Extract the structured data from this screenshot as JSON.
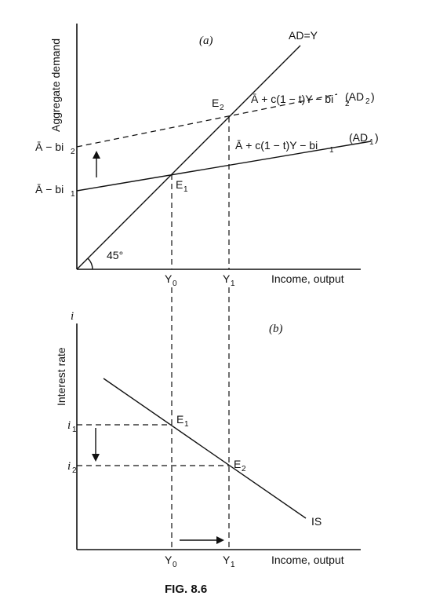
{
  "panel_a": {
    "tag": "(a)",
    "y_axis_label": "Aggregate demand",
    "x_axis_label": "Income, output",
    "ad_y_label": "AD=Y",
    "angle_label": "45°",
    "ad2_label": "(AD",
    "ad2_sub": "2",
    "ad1_label": "(AD",
    "ad1_sub": "1",
    "ad2_expr": "Ā + c(1 − t)Y − bi",
    "ad2_expr_sub": "2",
    "ad1_expr": "Ā + c(1 − t)Y − bi",
    "ad1_expr_sub": "1",
    "intercept2": "Ā − bi",
    "intercept2_sub": "2",
    "intercept1": "Ā − bi",
    "intercept1_sub": "1",
    "point_e1": "E",
    "point_e1_sub": "1",
    "point_e2": "E",
    "point_e2_sub": "2",
    "tick_y0": "Y",
    "tick_y0_sub": "0",
    "tick_y1": "Y",
    "tick_y1_sub": "1"
  },
  "panel_b": {
    "tag": "(b)",
    "i_axis_symbol": "i",
    "y_axis_label": "Interest rate",
    "x_axis_label": "Income, output",
    "is_label": "IS",
    "tick_i1": "i",
    "tick_i1_sub": "1",
    "tick_i2": "i",
    "tick_i2_sub": "2",
    "point_e1": "E",
    "point_e1_sub": "1",
    "point_e2": "E",
    "point_e2_sub": "2",
    "tick_y0": "Y",
    "tick_y0_sub": "0",
    "tick_y1": "Y",
    "tick_y1_sub": "1"
  },
  "caption": "FIG. 8.6"
}
